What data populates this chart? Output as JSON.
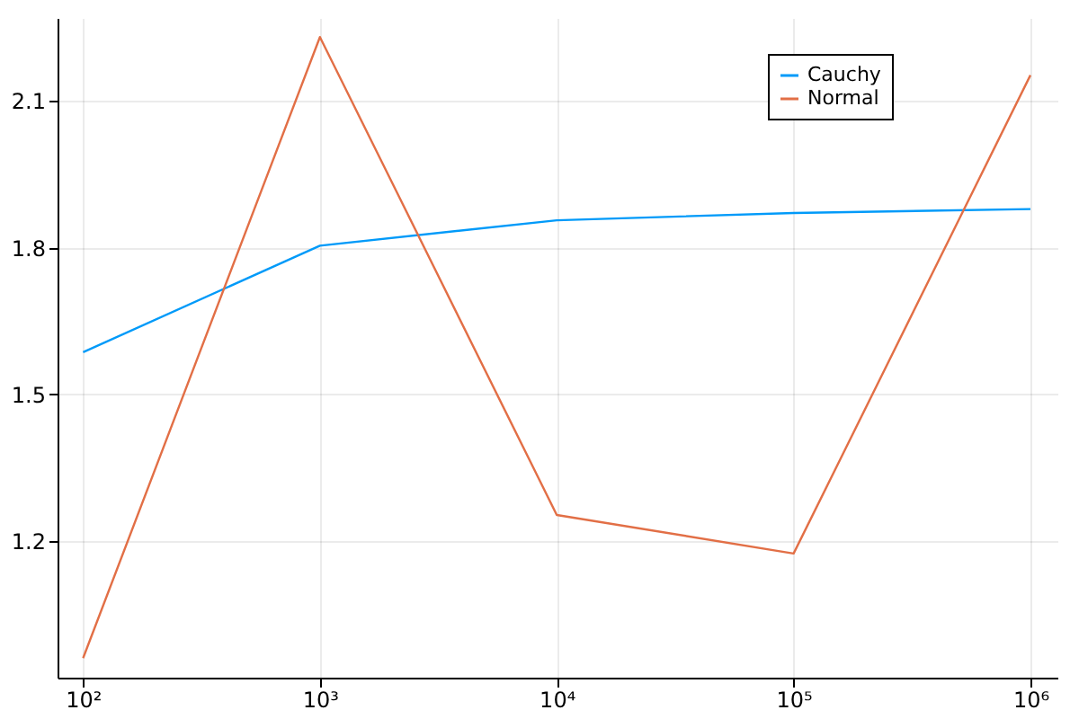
{
  "chart_data": {
    "type": "line",
    "x": [
      100,
      1000,
      10000,
      100000,
      1000000
    ],
    "series": [
      {
        "name": "Cauchy",
        "color": "#009af9",
        "values": [
          1.586,
          1.804,
          1.856,
          1.871,
          1.879
        ]
      },
      {
        "name": "Normal",
        "color": "#e26f46",
        "values": [
          0.96,
          2.231,
          1.253,
          1.174,
          2.153
        ]
      }
    ],
    "log": "x",
    "xlim": [
      78,
      1300000
    ],
    "xticks": [
      {
        "value": 100,
        "label": "10²"
      },
      {
        "value": 1000,
        "label": "10³"
      },
      {
        "value": 10000,
        "label": "10⁴"
      },
      {
        "value": 100000,
        "label": "10⁵"
      },
      {
        "value": 1000000,
        "label": "10⁶"
      }
    ],
    "ylim": [
      0.92,
      2.27
    ],
    "yticks": [
      1.2,
      1.5,
      1.8,
      2.1
    ],
    "grid": true,
    "legend": "top right"
  }
}
